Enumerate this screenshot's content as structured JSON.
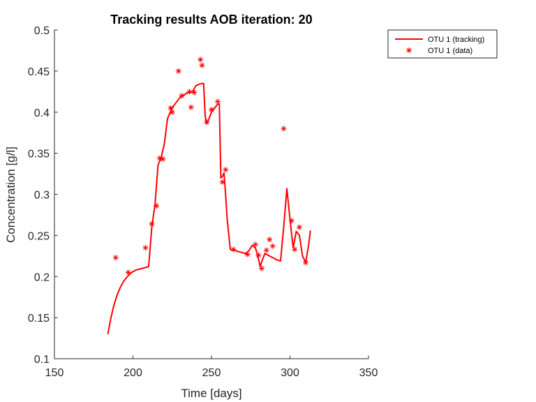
{
  "chart_data": {
    "type": "line",
    "title": "Tracking results AOB iteration: 20",
    "xlabel": "Time [days]",
    "ylabel": "Concentration [g/l]",
    "xlim": [
      150,
      350
    ],
    "ylim": [
      0.1,
      0.5
    ],
    "xticks": [
      150,
      200,
      250,
      300,
      350
    ],
    "yticks": [
      0.1,
      0.15,
      0.2,
      0.25,
      0.3,
      0.35,
      0.4,
      0.45,
      0.5
    ],
    "grid": false,
    "legend_position": "top-right, outside axes",
    "series": [
      {
        "name": "OTU 1 (tracking)",
        "style": "line",
        "color": "#ff0000",
        "x": [
          184,
          186,
          188,
          190,
          192,
          194,
          196,
          198,
          200,
          202,
          204,
          206,
          208,
          210,
          212,
          214,
          216,
          218,
          220,
          222,
          224,
          226,
          228,
          230,
          232,
          234,
          236,
          238,
          240,
          242,
          244,
          245,
          246,
          247,
          248,
          250,
          252,
          254,
          255,
          256,
          257,
          258,
          259,
          260,
          262,
          264,
          266,
          268,
          270,
          272,
          274,
          276,
          278,
          280,
          281,
          282,
          284,
          286,
          288,
          290,
          292,
          294,
          295,
          296,
          298,
          300,
          302,
          304,
          306,
          308,
          310,
          312,
          313
        ],
        "y": [
          0.13,
          0.15,
          0.166,
          0.178,
          0.187,
          0.194,
          0.199,
          0.203,
          0.206,
          0.208,
          0.209,
          0.21,
          0.211,
          0.212,
          0.26,
          0.287,
          0.336,
          0.345,
          0.362,
          0.392,
          0.401,
          0.408,
          0.413,
          0.418,
          0.42,
          0.423,
          0.424,
          0.425,
          0.432,
          0.434,
          0.435,
          0.435,
          0.395,
          0.386,
          0.39,
          0.4,
          0.405,
          0.41,
          0.41,
          0.32,
          0.322,
          0.326,
          0.3,
          0.27,
          0.233,
          0.232,
          0.231,
          0.23,
          0.229,
          0.228,
          0.232,
          0.238,
          0.235,
          0.221,
          0.212,
          0.218,
          0.228,
          0.226,
          0.224,
          0.222,
          0.22,
          0.219,
          0.24,
          0.26,
          0.307,
          0.27,
          0.235,
          0.255,
          0.25,
          0.225,
          0.217,
          0.24,
          0.256
        ]
      },
      {
        "name": "OTU 1 (data)",
        "style": "markers",
        "marker": "*",
        "color": "#ff0000",
        "x": [
          189,
          197,
          208,
          212,
          215,
          217,
          219,
          224,
          225,
          229,
          231,
          236,
          237,
          239,
          243,
          244,
          247,
          250,
          254,
          257,
          259,
          264,
          273,
          278,
          280,
          282,
          285,
          287,
          289,
          296,
          301,
          303,
          306,
          310
        ],
        "y": [
          0.223,
          0.205,
          0.235,
          0.264,
          0.286,
          0.344,
          0.343,
          0.405,
          0.4,
          0.45,
          0.42,
          0.425,
          0.406,
          0.424,
          0.464,
          0.457,
          0.388,
          0.403,
          0.413,
          0.315,
          0.33,
          0.233,
          0.227,
          0.239,
          0.226,
          0.21,
          0.232,
          0.245,
          0.237,
          0.38,
          0.268,
          0.233,
          0.26,
          0.217
        ]
      }
    ]
  }
}
